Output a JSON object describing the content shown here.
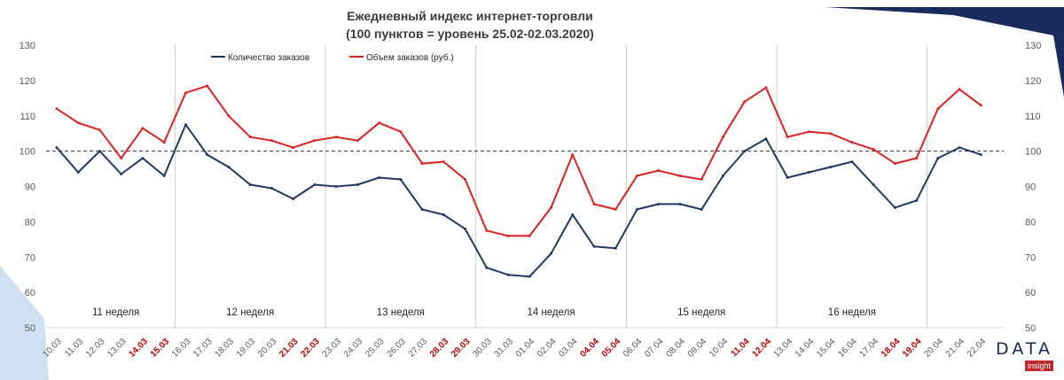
{
  "chart_data": {
    "type": "line",
    "title_line1": "Ежедневный индекс интернет-торговли",
    "title_line2": "(100 пунктов = уровень 25.02-02.03.2020)",
    "ylim": [
      50,
      130
    ],
    "yticks": [
      50,
      60,
      70,
      80,
      90,
      100,
      110,
      120,
      130
    ],
    "reference_line": 100,
    "x": [
      "10.03",
      "11.03",
      "12.03",
      "13.03",
      "14.03",
      "15.03",
      "16.03",
      "17.03",
      "18.03",
      "19.03",
      "20.03",
      "21.03",
      "22.03",
      "23.03",
      "24.03",
      "25.03",
      "26.03",
      "27.03",
      "28.03",
      "29.03",
      "30.03",
      "31.03",
      "01.04",
      "02.04",
      "03.04",
      "04.04",
      "05.04",
      "06.04",
      "07.04",
      "08.04",
      "09.04",
      "10.04",
      "11.04",
      "12.04",
      "13.04",
      "14.04",
      "15.04",
      "16.04",
      "17.04",
      "18.04",
      "19.04",
      "20.04",
      "21.04",
      "22.04"
    ],
    "weekend_labels": [
      "14.03",
      "15.03",
      "21.03",
      "22.03",
      "28.03",
      "29.03",
      "04.04",
      "05.04",
      "11.04",
      "12.04",
      "18.04",
      "19.04"
    ],
    "weeks": [
      "11 неделя",
      "12 неделя",
      "13 неделя",
      "14 неделя",
      "15 неделя",
      "16 неделя"
    ],
    "series": [
      {
        "name": "Количество заказов",
        "color": "#1f3864",
        "values": [
          101,
          94,
          100,
          93.5,
          98,
          93,
          107.5,
          99,
          95.5,
          90.5,
          89.5,
          86.5,
          90.5,
          90,
          90.5,
          92.5,
          92,
          83.5,
          82,
          78,
          67,
          65,
          64.5,
          71,
          82,
          73,
          72.5,
          83.5,
          85,
          85,
          83.5,
          93,
          100,
          103.5,
          92.5,
          94,
          95.5,
          97,
          90.5,
          84,
          86,
          98,
          101,
          99
        ]
      },
      {
        "name": "Объем заказов (руб.)",
        "color": "#e02020",
        "values": [
          112,
          108,
          106,
          98,
          106.5,
          102.5,
          116.5,
          118.5,
          110,
          104,
          103,
          101,
          103,
          104,
          103,
          108,
          105.5,
          96.5,
          97,
          92,
          77.5,
          76,
          76,
          84,
          99,
          85,
          83.5,
          93,
          94.5,
          93,
          92,
          104,
          114,
          118,
          104,
          105.5,
          105,
          102.5,
          100.5,
          96.5,
          98,
          112,
          117.5,
          113
        ]
      }
    ],
    "grid": false,
    "legend_position": "top"
  },
  "logo": {
    "text": "DATA",
    "sub": "insight"
  }
}
